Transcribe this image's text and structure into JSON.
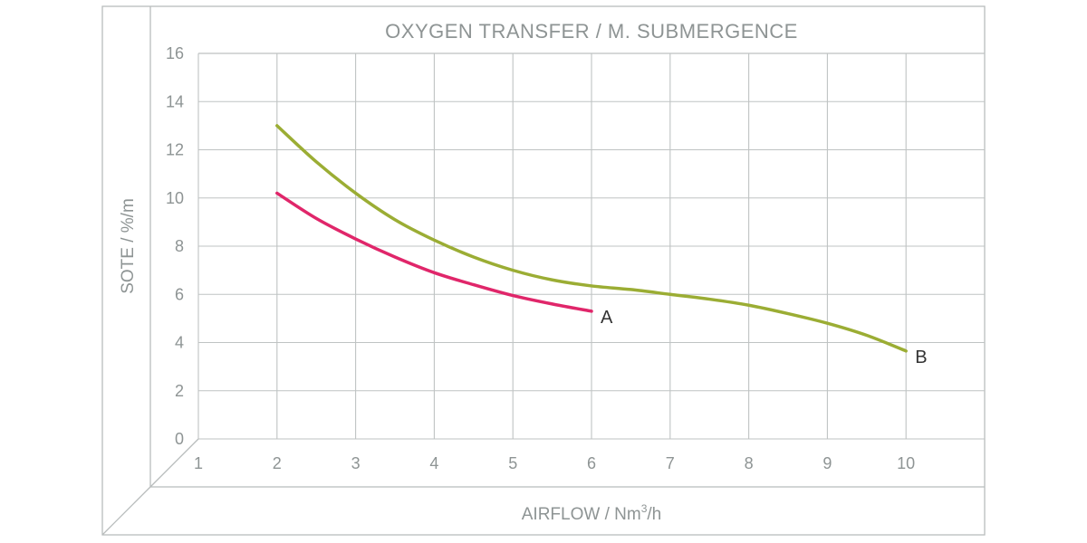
{
  "chart_data": {
    "type": "line",
    "title": "OXYGEN TRANSFER / M. SUBMERGENCE",
    "xlabel_main": "AIRFLOW / Nm",
    "xlabel_sup": "3",
    "xlabel_tail": "/h",
    "ylabel": "SOTE / %/m",
    "x_ticks": [
      "1",
      "2",
      "3",
      "4",
      "5",
      "6",
      "7",
      "8",
      "9",
      "10"
    ],
    "y_ticks": [
      "0",
      "2",
      "4",
      "6",
      "8",
      "10",
      "12",
      "14",
      "16"
    ],
    "xlim": [
      1,
      11
    ],
    "ylim": [
      0,
      16
    ],
    "grid": true,
    "series": [
      {
        "name": "A",
        "color": "#e0266a",
        "x": [
          2,
          2.5,
          3,
          3.5,
          4,
          4.5,
          5,
          5.5,
          6
        ],
        "y": [
          10.2,
          9.15,
          8.3,
          7.55,
          6.9,
          6.4,
          5.95,
          5.6,
          5.3
        ]
      },
      {
        "name": "B",
        "color": "#9bad34",
        "x": [
          2,
          2.5,
          3,
          3.5,
          4,
          4.5,
          5,
          5.5,
          6,
          6.5,
          7,
          7.5,
          8,
          8.5,
          9,
          9.5,
          10
        ],
        "y": [
          13,
          11.5,
          10.2,
          9.1,
          8.25,
          7.55,
          7.0,
          6.6,
          6.35,
          6.2,
          6.0,
          5.8,
          5.55,
          5.2,
          4.8,
          4.3,
          3.65
        ]
      }
    ]
  }
}
